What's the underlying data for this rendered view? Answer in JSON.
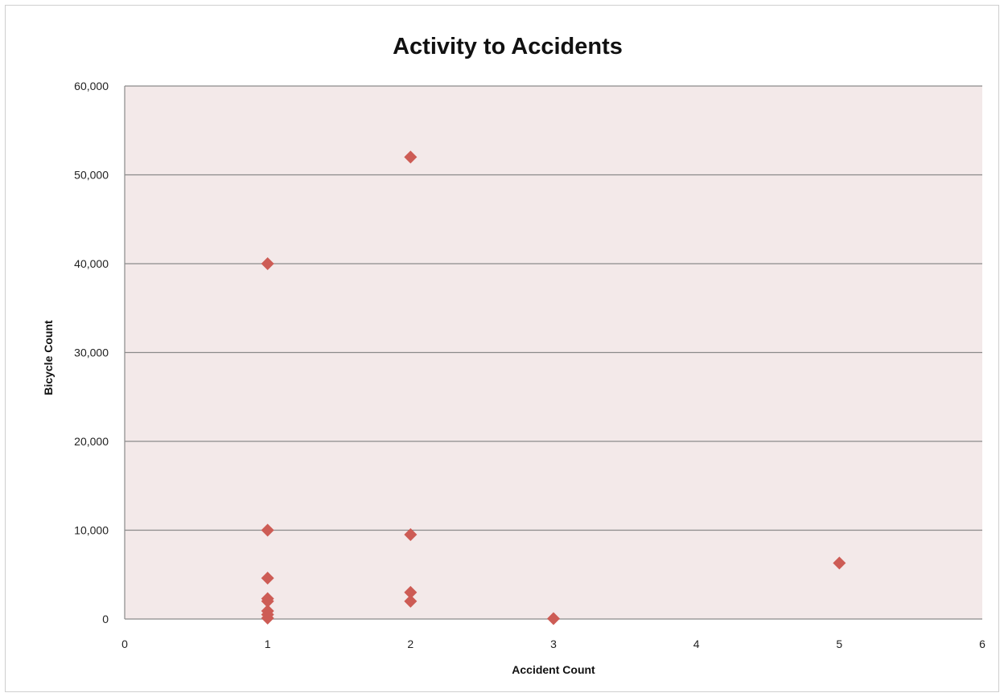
{
  "chart_data": {
    "type": "scatter",
    "title": "Activity to Accidents",
    "xlabel": "Accident Count",
    "ylabel": "Bicycle Count",
    "xlim": [
      0,
      6
    ],
    "ylim": [
      0,
      60000
    ],
    "x_ticks": [
      0,
      1,
      2,
      3,
      4,
      5,
      6
    ],
    "x_tick_labels": [
      "0",
      "1",
      "2",
      "3",
      "4",
      "5",
      "6"
    ],
    "y_ticks": [
      0,
      10000,
      20000,
      30000,
      40000,
      50000,
      60000
    ],
    "y_tick_labels": [
      "0",
      "10,000",
      "20,000",
      "30,000",
      "40,000",
      "50,000",
      "60,000"
    ],
    "grid": "horizontal",
    "legend": "none",
    "marker": "diamond",
    "colors": {
      "marker": "#cd5c55",
      "plot_background": "#f3e9e9",
      "gridline": "#8a8a8a"
    },
    "series": [
      {
        "points": [
          {
            "x": 1,
            "y": 40000
          },
          {
            "x": 1,
            "y": 10000
          },
          {
            "x": 1,
            "y": 4600
          },
          {
            "x": 1,
            "y": 2300
          },
          {
            "x": 1,
            "y": 2000
          },
          {
            "x": 1,
            "y": 900
          },
          {
            "x": 1,
            "y": 500
          },
          {
            "x": 1,
            "y": 100
          },
          {
            "x": 2,
            "y": 52000
          },
          {
            "x": 2,
            "y": 9500
          },
          {
            "x": 2,
            "y": 3000
          },
          {
            "x": 2,
            "y": 2000
          },
          {
            "x": 3,
            "y": 50
          },
          {
            "x": 5,
            "y": 6300
          }
        ]
      }
    ]
  }
}
